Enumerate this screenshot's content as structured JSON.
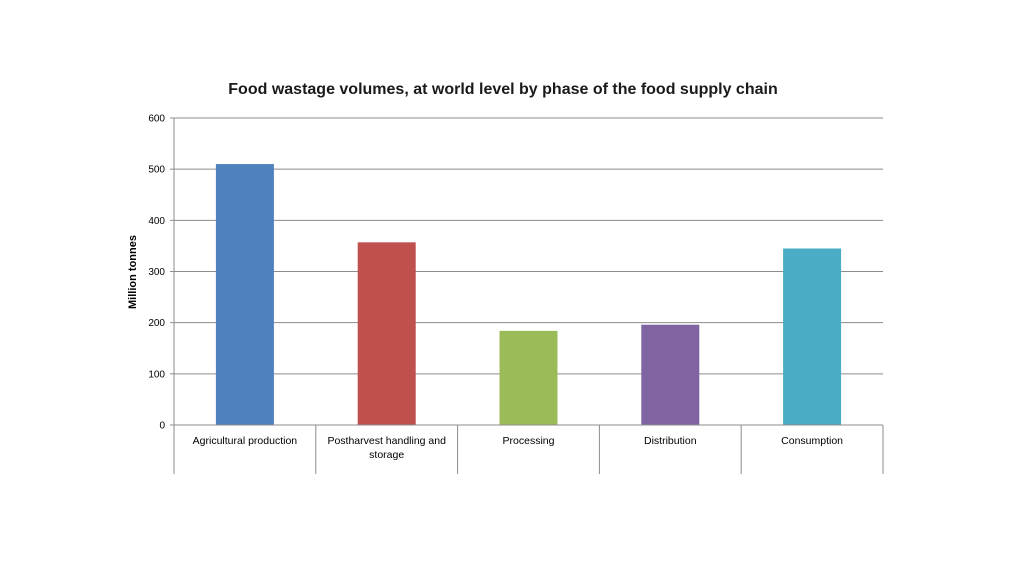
{
  "chart_data": {
    "type": "bar",
    "title": "Food wastage volumes, at world level by phase of the food supply chain",
    "ylabel": "Million tonnes",
    "xlabel": "",
    "categories": [
      "Agricultural production",
      "Postharvest handling and storage",
      "Processing",
      "Distribution",
      "Consumption"
    ],
    "values": [
      510,
      357,
      184,
      196,
      345
    ],
    "colors": [
      "#4f81bd",
      "#c0504d",
      "#9bbb59",
      "#8064a2",
      "#4bacc6"
    ],
    "ylim": [
      0,
      600
    ],
    "yticks": [
      0,
      100,
      200,
      300,
      400,
      500,
      600
    ],
    "grid": true,
    "legend": "none"
  }
}
